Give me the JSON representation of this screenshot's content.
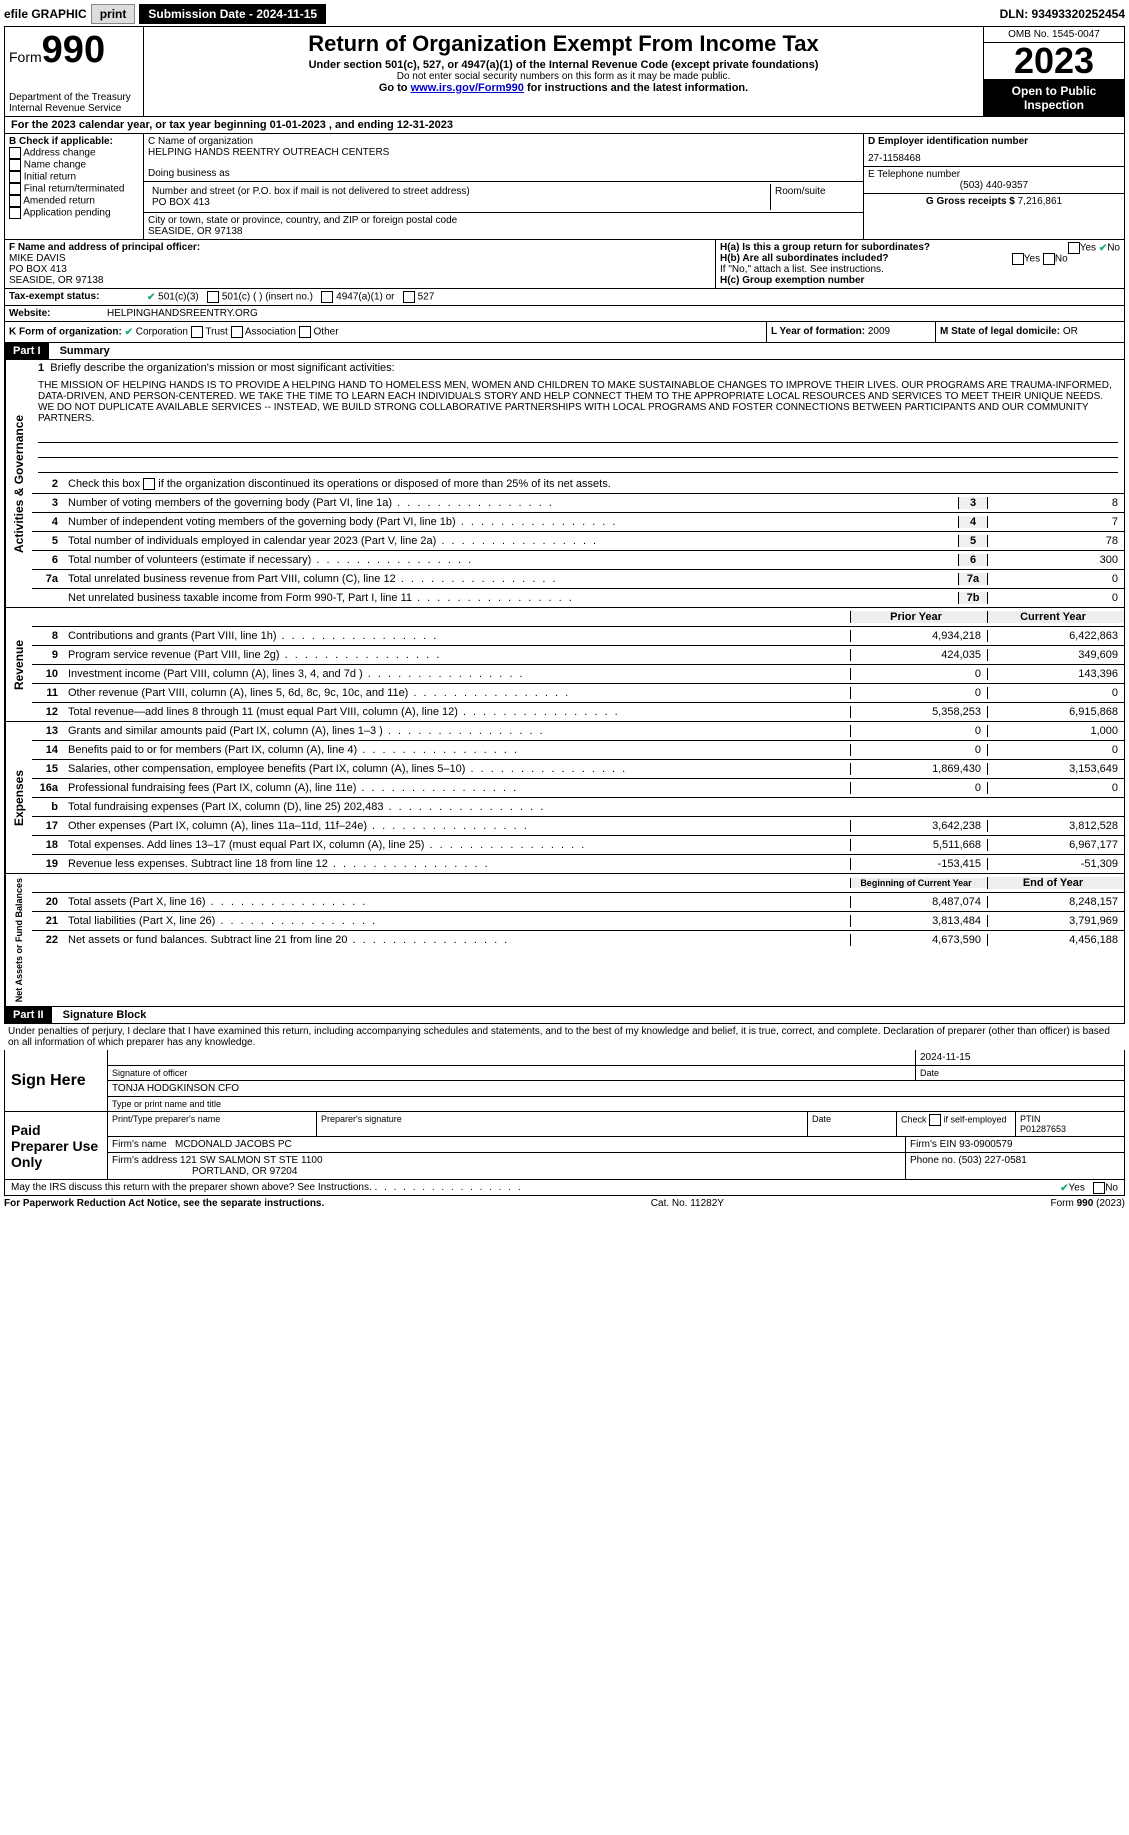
{
  "topbar": {
    "efile": "efile GRAPHIC",
    "print": "print",
    "sub_label": "Submission Date - 2024-11-15",
    "dln": "DLN: 93493320252454"
  },
  "header": {
    "form_word": "Form",
    "form_num": "990",
    "dept": "Department of the Treasury",
    "irs": "Internal Revenue Service",
    "title": "Return of Organization Exempt From Income Tax",
    "subtitle": "Under section 501(c), 527, or 4947(a)(1) of the Internal Revenue Code (except private foundations)",
    "ssn_note": "Do not enter social security numbers on this form as it may be made public.",
    "goto1": "Go to ",
    "goto_link": "www.irs.gov/Form990",
    "goto2": " for instructions and the latest information.",
    "omb": "OMB No. 1545-0047",
    "year": "2023",
    "open": "Open to Public Inspection"
  },
  "sectionA": {
    "cal_year": "For the 2023 calendar year, or tax year beginning 01-01-2023   , and ending 12-31-2023",
    "b_label": "B Check if applicable:",
    "b_items": [
      "Address change",
      "Name change",
      "Initial return",
      "Final return/terminated",
      "Amended return",
      "Application pending"
    ],
    "c_name_label": "C Name of organization",
    "c_name": "HELPING HANDS REENTRY OUTREACH CENTERS",
    "dba_label": "Doing business as",
    "dba": "",
    "addr_label": "Number and street (or P.O. box if mail is not delivered to street address)",
    "addr": "PO BOX 413",
    "room_label": "Room/suite",
    "city_label": "City or town, state or province, country, and ZIP or foreign postal code",
    "city": "SEASIDE, OR  97138",
    "d_label": "D Employer identification number",
    "d_ein": "27-1158468",
    "e_label": "E Telephone number",
    "e_phone": "(503) 440-9357",
    "g_label": "G Gross receipts $",
    "g_val": "7,216,861",
    "f_label": "F  Name and address of principal officer:",
    "f_name": "MIKE DAVIS",
    "f_addr1": "PO BOX 413",
    "f_addr2": "SEASIDE, OR  97138",
    "ha_label": "H(a)  Is this a group return for subordinates?",
    "hb_label": "H(b)  Are all subordinates included?",
    "hb_note": "If \"No,\" attach a list. See instructions.",
    "hc_label": "H(c)  Group exemption number ",
    "yes": "Yes",
    "no": "No",
    "i_label": "Tax-exempt status:",
    "i_501c3": "501(c)(3)",
    "i_501c": "501(c) (  ) (insert no.)",
    "i_4947": "4947(a)(1) or",
    "i_527": "527",
    "j_label": "Website: ",
    "j_val": "HELPINGHANDSREENTRY.ORG",
    "k_label": "K Form of organization:",
    "k_corp": "Corporation",
    "k_trust": "Trust",
    "k_assoc": "Association",
    "k_other": "Other",
    "l_label": "L Year of formation: ",
    "l_val": "2009",
    "m_label": "M State of legal domicile: ",
    "m_val": "OR"
  },
  "part1": {
    "label": "Part I",
    "title": "Summary",
    "vert_gov": "Activities & Governance",
    "vert_rev": "Revenue",
    "vert_exp": "Expenses",
    "vert_net": "Net Assets or Fund Balances",
    "l1_label": "Briefly describe the organization's mission or most significant activities:",
    "mission": "THE MISSION OF HELPING HANDS IS TO PROVIDE A HELPING HAND TO HOMELESS MEN, WOMEN AND CHILDREN TO MAKE SUSTAINABLOE CHANGES TO IMPROVE THEIR LIVES. OUR PROGRAMS ARE TRAUMA-INFORMED, DATA-DRIVEN, AND PERSON-CENTERED. WE TAKE THE TIME TO LEARN EACH INDIVIDUALS STORY AND HELP CONNECT THEM TO THE APPROPRIATE LOCAL RESOURCES AND SERVICES TO MEET THEIR UNIQUE NEEDS. WE DO NOT DUPLICATE AVAILABLE SERVICES -- INSTEAD, WE BUILD STRONG COLLABORATIVE PARTNERSHIPS WITH LOCAL PROGRAMS AND FOSTER CONNECTIONS BETWEEN PARTICIPANTS AND OUR COMMUNITY PARTNERS.",
    "l2": "Check this box      if the organization discontinued its operations or disposed of more than 25% of its net assets.",
    "lines_gov": [
      {
        "num": "3",
        "text": "Number of voting members of the governing body (Part VI, line 1a)",
        "box": "3",
        "val": "8"
      },
      {
        "num": "4",
        "text": "Number of independent voting members of the governing body (Part VI, line 1b)",
        "box": "4",
        "val": "7"
      },
      {
        "num": "5",
        "text": "Total number of individuals employed in calendar year 2023 (Part V, line 2a)",
        "box": "5",
        "val": "78"
      },
      {
        "num": "6",
        "text": "Total number of volunteers (estimate if necessary)",
        "box": "6",
        "val": "300"
      },
      {
        "num": "7a",
        "text": "Total unrelated business revenue from Part VIII, column (C), line 12",
        "box": "7a",
        "val": "0"
      },
      {
        "num": "",
        "text": "Net unrelated business taxable income from Form 990-T, Part I, line 11",
        "box": "7b",
        "val": "0"
      }
    ],
    "prior_label": "Prior Year",
    "current_label": "Current Year",
    "lines_rev": [
      {
        "num": "8",
        "text": "Contributions and grants (Part VIII, line 1h)",
        "prior": "4,934,218",
        "curr": "6,422,863"
      },
      {
        "num": "9",
        "text": "Program service revenue (Part VIII, line 2g)",
        "prior": "424,035",
        "curr": "349,609"
      },
      {
        "num": "10",
        "text": "Investment income (Part VIII, column (A), lines 3, 4, and 7d )",
        "prior": "0",
        "curr": "143,396"
      },
      {
        "num": "11",
        "text": "Other revenue (Part VIII, column (A), lines 5, 6d, 8c, 9c, 10c, and 11e)",
        "prior": "0",
        "curr": "0"
      },
      {
        "num": "12",
        "text": "Total revenue—add lines 8 through 11 (must equal Part VIII, column (A), line 12)",
        "prior": "5,358,253",
        "curr": "6,915,868"
      }
    ],
    "lines_exp": [
      {
        "num": "13",
        "text": "Grants and similar amounts paid (Part IX, column (A), lines 1–3 )",
        "prior": "0",
        "curr": "1,000"
      },
      {
        "num": "14",
        "text": "Benefits paid to or for members (Part IX, column (A), line 4)",
        "prior": "0",
        "curr": "0"
      },
      {
        "num": "15",
        "text": "Salaries, other compensation, employee benefits (Part IX, column (A), lines 5–10)",
        "prior": "1,869,430",
        "curr": "3,153,649"
      },
      {
        "num": "16a",
        "text": "Professional fundraising fees (Part IX, column (A), line 11e)",
        "prior": "0",
        "curr": "0"
      },
      {
        "num": "b",
        "text": "Total fundraising expenses (Part IX, column (D), line 25) 202,483",
        "prior": "",
        "curr": "",
        "gray": true
      },
      {
        "num": "17",
        "text": "Other expenses (Part IX, column (A), lines 11a–11d, 11f–24e)",
        "prior": "3,642,238",
        "curr": "3,812,528"
      },
      {
        "num": "18",
        "text": "Total expenses. Add lines 13–17 (must equal Part IX, column (A), line 25)",
        "prior": "5,511,668",
        "curr": "6,967,177"
      },
      {
        "num": "19",
        "text": "Revenue less expenses. Subtract line 18 from line 12",
        "prior": "-153,415",
        "curr": "-51,309"
      }
    ],
    "begin_label": "Beginning of Current Year",
    "end_label": "End of Year",
    "lines_net": [
      {
        "num": "20",
        "text": "Total assets (Part X, line 16)",
        "prior": "8,487,074",
        "curr": "8,248,157"
      },
      {
        "num": "21",
        "text": "Total liabilities (Part X, line 26)",
        "prior": "3,813,484",
        "curr": "3,791,969"
      },
      {
        "num": "22",
        "text": "Net assets or fund balances. Subtract line 21 from line 20",
        "prior": "4,673,590",
        "curr": "4,456,188"
      }
    ]
  },
  "part2": {
    "label": "Part II",
    "title": "Signature Block",
    "penalties": "Under penalties of perjury, I declare that I have examined this return, including accompanying schedules and statements, and to the best of my knowledge and belief, it is true, correct, and complete. Declaration of preparer (other than officer) is based on all information of which preparer has any knowledge.",
    "sign_here": "Sign Here",
    "sig_date": "2024-11-15",
    "sig_officer_label": "Signature of officer",
    "sig_date_label": "Date",
    "officer": "TONJA HODGKINSON  CFO",
    "type_label": "Type or print name and title",
    "paid": "Paid Preparer Use Only",
    "prep_name_label": "Print/Type preparer's name",
    "prep_sig_label": "Preparer's signature",
    "prep_date_label": "Date",
    "self_emp": "Check         if self-employed",
    "ptin_label": "PTIN",
    "ptin": "P01287653",
    "firm_name_label": "Firm's name   ",
    "firm_name": "MCDONALD JACOBS PC",
    "firm_ein_label": "Firm's EIN  ",
    "firm_ein": "93-0900579",
    "firm_addr_label": "Firm's address ",
    "firm_addr1": "121 SW SALMON ST STE 1100",
    "firm_addr2": "PORTLAND, OR  97204",
    "phone_label": "Phone no. ",
    "phone": "(503) 227-0581",
    "discuss": "May the IRS discuss this return with the preparer shown above? See Instructions."
  },
  "footer": {
    "pra": "For Paperwork Reduction Act Notice, see the separate instructions.",
    "cat": "Cat. No. 11282Y",
    "form": "Form 990 (2023)"
  }
}
